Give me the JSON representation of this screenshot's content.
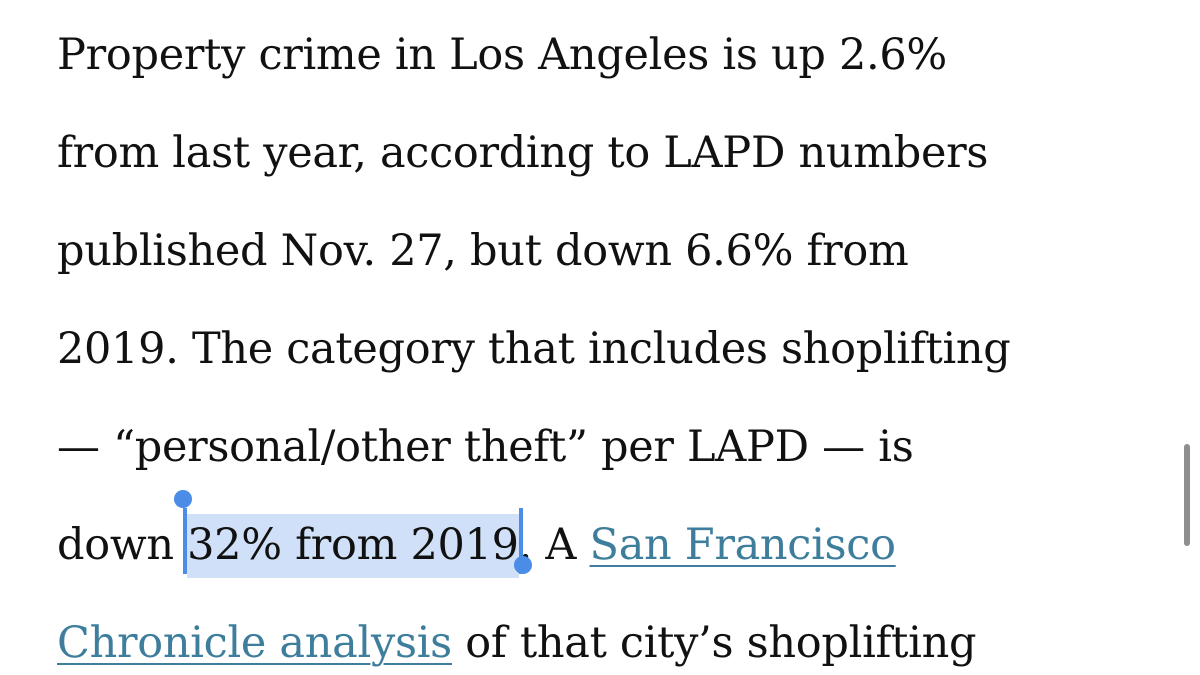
{
  "article": {
    "line1": "Property crime in Los Angeles is up 2.6%",
    "line2": "from last year, according to LAPD numbers",
    "line3": "published Nov. 27, but down 6.6% from",
    "line4": "2019. The category that includes shoplifting",
    "line5": "— “personal/other theft” per LAPD — is",
    "line6_before": "down ",
    "line6_selected": "32% from 2019",
    "line6_after": ". A ",
    "link_part1": "San Francisco",
    "link_part2": "Chronicle analysis",
    "line7_after": " of that city’s shoplifting"
  },
  "colors": {
    "text": "#111111",
    "link": "#3e7e9c",
    "selection_highlight": "#cfe0f8",
    "selection_handle": "#4a8ce6",
    "scroll_indicator": "#8e8e8e"
  }
}
